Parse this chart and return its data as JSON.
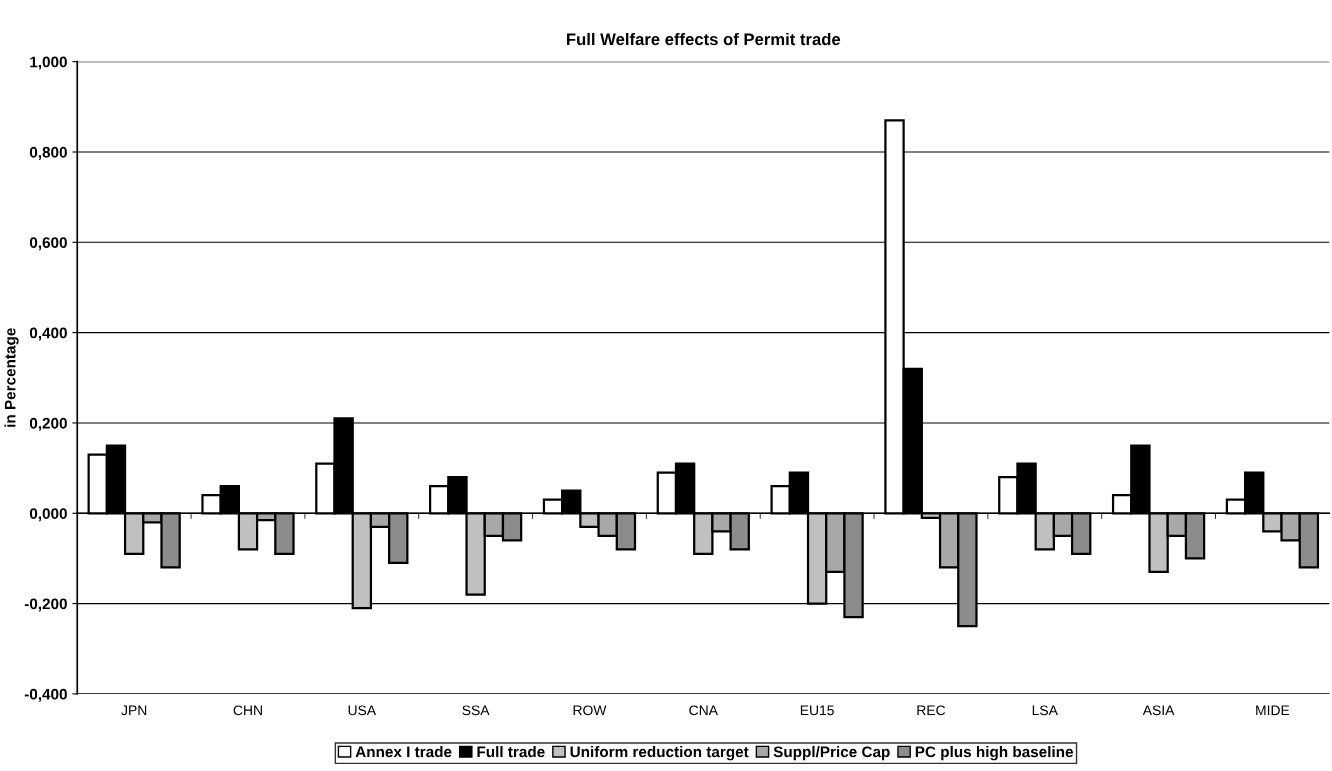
{
  "chart_data": {
    "type": "bar",
    "title": "Full Welfare effects of Permit trade",
    "ylabel": "in Percentage",
    "categories": [
      "JPN",
      "CHN",
      "USA",
      "SSA",
      "ROW",
      "CNA",
      "EU15",
      "REC",
      "LSA",
      "ASIA",
      "MIDE"
    ],
    "series": [
      {
        "name": "Annex I trade",
        "color": "#ffffff",
        "values": [
          0.13,
          0.04,
          0.11,
          0.06,
          0.03,
          0.09,
          0.06,
          0.87,
          0.08,
          0.04,
          0.03
        ]
      },
      {
        "name": "Full trade",
        "color": "#000000",
        "values": [
          0.15,
          0.06,
          0.21,
          0.08,
          0.05,
          0.11,
          0.09,
          0.32,
          0.11,
          0.15,
          0.09
        ]
      },
      {
        "name": "Uniform reduction target",
        "color": "#c0c0c0",
        "values": [
          -0.09,
          -0.08,
          -0.21,
          -0.18,
          -0.03,
          -0.09,
          -0.2,
          -0.01,
          -0.08,
          -0.13,
          -0.04
        ]
      },
      {
        "name": "Suppl/Price Cap",
        "color": "#a8a8a8",
        "values": [
          -0.02,
          -0.015,
          -0.03,
          -0.05,
          -0.05,
          -0.04,
          -0.13,
          -0.12,
          -0.05,
          -0.05,
          -0.06
        ]
      },
      {
        "name": "PC plus high baseline",
        "color": "#8c8c8c",
        "values": [
          -0.12,
          -0.09,
          -0.11,
          -0.06,
          -0.08,
          -0.08,
          -0.23,
          -0.25,
          -0.09,
          -0.1,
          -0.12
        ]
      }
    ],
    "ylim": [
      -0.4,
      1.0
    ],
    "yticks": [
      {
        "value": -0.4,
        "label": "-0,400"
      },
      {
        "value": -0.2,
        "label": "-0,200"
      },
      {
        "value": 0,
        "label": "0,000"
      },
      {
        "value": 0.2,
        "label": "0,200"
      },
      {
        "value": 0.4,
        "label": "0,400"
      },
      {
        "value": 0.6,
        "label": "0,600"
      },
      {
        "value": 0.8,
        "label": "0,800"
      },
      {
        "value": 1.0,
        "label": "1,000"
      }
    ],
    "grid": "y",
    "legend": "bottom"
  }
}
